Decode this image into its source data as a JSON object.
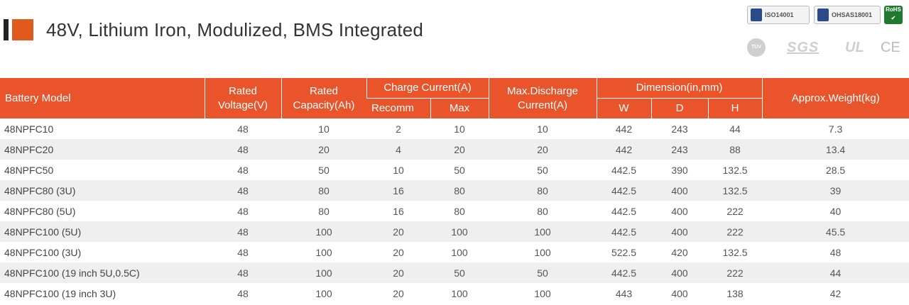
{
  "header": {
    "title": "48V, Lithium Iron, Modulized, BMS Integrated"
  },
  "certifications": {
    "iso14001": "ISO14001",
    "ohsas18001": "OHSAS18001",
    "rohs": "RoHS",
    "tuv": "TÜV",
    "sgs": "SGS",
    "ul": "UL",
    "ce": "CE"
  },
  "table": {
    "headers": {
      "model": "Battery Model",
      "voltage": "Rated Voltage(V)",
      "capacity": "Rated Capacity(Ah)",
      "charge_current": "Charge Current(A)",
      "recomm": "Recomm",
      "max": "Max",
      "discharge": "Max.Discharge Current(A)",
      "dimension": "Dimension(in,mm)",
      "w": "W",
      "d": "D",
      "h": "H",
      "weight": "Approx.Weight(kg)"
    },
    "rows": [
      [
        "48NPFC10",
        "48",
        "10",
        "2",
        "10",
        "10",
        "442",
        "243",
        "44",
        "7.3"
      ],
      [
        "48NPFC20",
        "48",
        "20",
        "4",
        "20",
        "20",
        "442",
        "243",
        "88",
        "13.4"
      ],
      [
        "48NPFC50",
        "48",
        "50",
        "10",
        "50",
        "50",
        "442.5",
        "390",
        "132.5",
        "28.5"
      ],
      [
        "48NPFC80 (3U)",
        "48",
        "80",
        "16",
        "80",
        "80",
        "442.5",
        "400",
        "132.5",
        "39"
      ],
      [
        "48NPFC80 (5U)",
        "48",
        "80",
        "16",
        "80",
        "80",
        "442.5",
        "400",
        "222",
        "40"
      ],
      [
        "48NPFC100 (5U)",
        "48",
        "100",
        "20",
        "100",
        "100",
        "442.5",
        "400",
        "222",
        "45.5"
      ],
      [
        "48NPFC100 (3U)",
        "48",
        "100",
        "20",
        "100",
        "100",
        "522.5",
        "420",
        "132.5",
        "48"
      ],
      [
        "48NPFC100 (19 inch 5U,0.5C)",
        "48",
        "100",
        "20",
        "50",
        "50",
        "442.5",
        "400",
        "222",
        "44"
      ],
      [
        "48NPFC100 (19 inch 3U)",
        "48",
        "100",
        "20",
        "100",
        "100",
        "443",
        "400",
        "138",
        "42"
      ]
    ]
  }
}
